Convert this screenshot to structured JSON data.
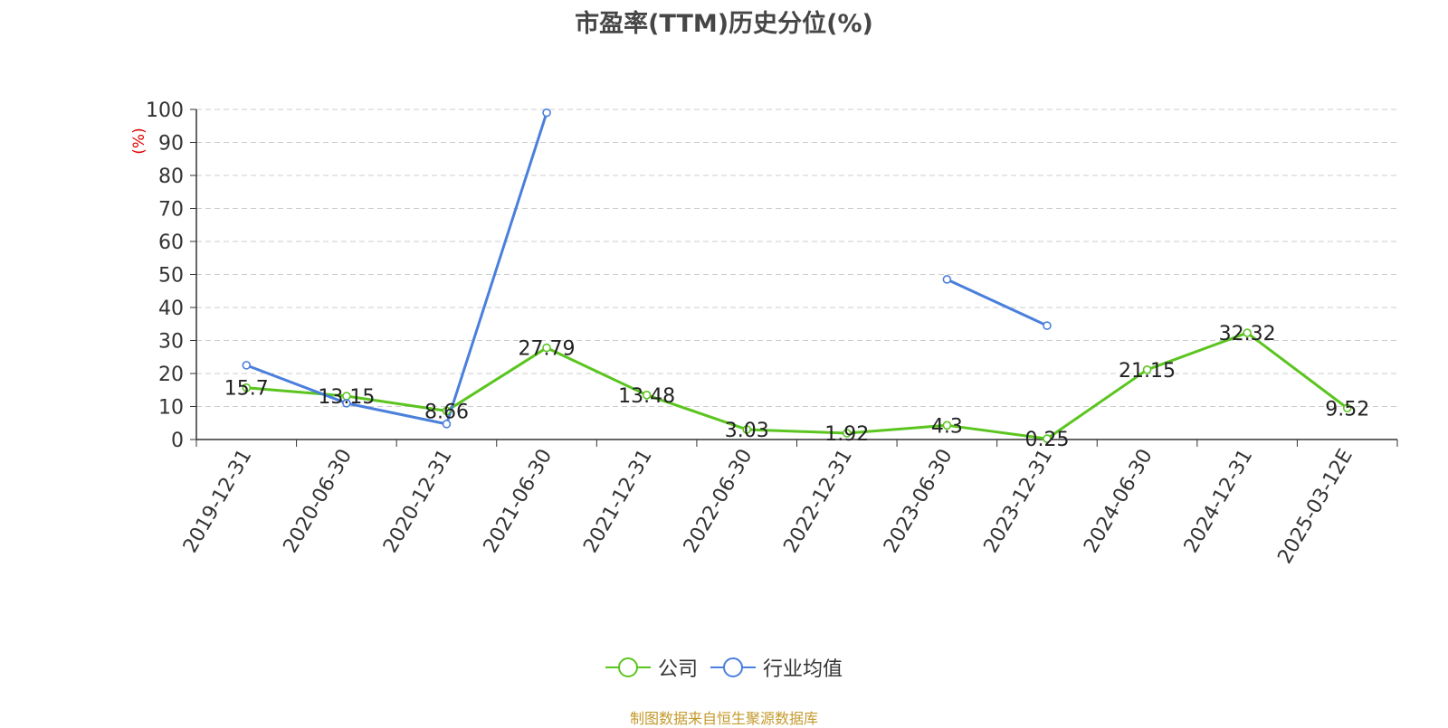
{
  "chart_data": {
    "type": "line",
    "title": "市盈率(TTM)历史分位(%)",
    "ylabel": "(%)",
    "xlabel": "",
    "ylim": [
      0,
      100
    ],
    "yticks": [
      0,
      10,
      20,
      30,
      40,
      50,
      60,
      70,
      80,
      90,
      100
    ],
    "grid": true,
    "legend_position": "bottom",
    "categories": [
      "2019-12-31",
      "2020-06-30",
      "2020-12-31",
      "2021-06-30",
      "2021-12-31",
      "2022-06-30",
      "2022-12-31",
      "2023-06-30",
      "2023-12-31",
      "2024-06-30",
      "2024-12-31",
      "2025-03-12E"
    ],
    "series": [
      {
        "name": "公司",
        "color": "#5bc51f",
        "values": [
          15.7,
          13.15,
          8.66,
          27.79,
          13.48,
          3.03,
          1.92,
          4.3,
          0.25,
          21.15,
          32.32,
          9.52
        ],
        "labels": [
          "15.7",
          "13.15",
          "8.66",
          "27.79",
          "13.48",
          "3.03",
          "1.92",
          "4.3",
          "0.25",
          "21.15",
          "32.32",
          "9.52"
        ]
      },
      {
        "name": "行业均值",
        "color": "#4a7fdc",
        "values": [
          22.5,
          11,
          4.7,
          99,
          null,
          null,
          null,
          48.5,
          34.5,
          null,
          null,
          null
        ]
      }
    ]
  },
  "footer": {
    "source": "制图数据来自恒生聚源数据库"
  }
}
